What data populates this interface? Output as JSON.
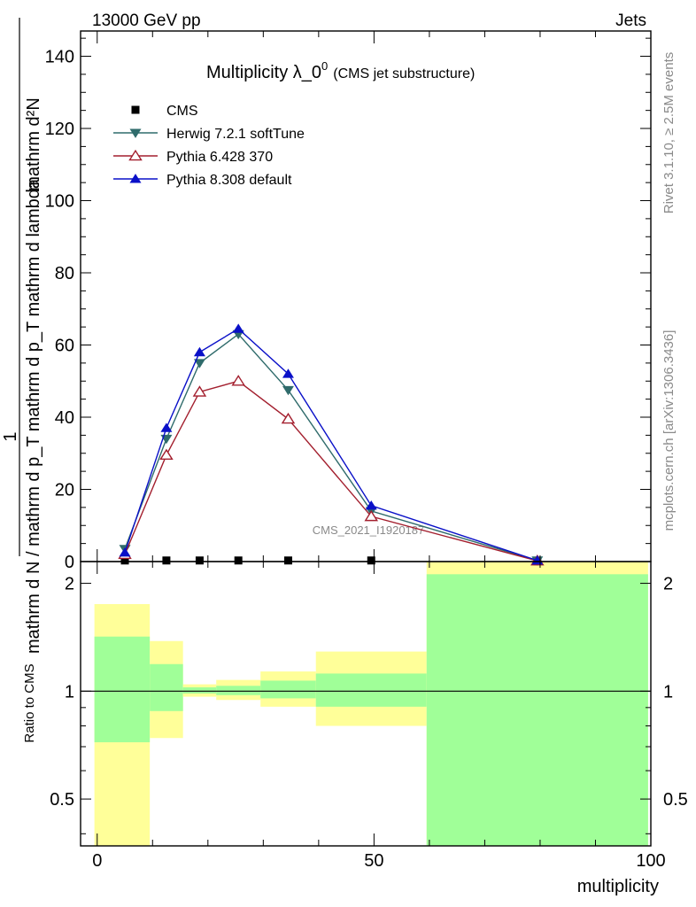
{
  "header": {
    "left": "13000 GeV pp",
    "right": "Jets"
  },
  "side_labels": {
    "rivet": "Rivet 3.1.10, ≥ 2.5M events",
    "mcplots": "mcplots.cern.ch [arXiv:1306.3436]"
  },
  "watermark": "CMS_2021_I1920187",
  "colors": {
    "cms": "#000000",
    "herwig": "#2f6b6b",
    "pythia6": "#a31f2e",
    "pythia8": "#0a10c8",
    "band_inner": "#a0ff98",
    "band_outer": "#ffff99"
  },
  "chart_data": [
    {
      "type": "line",
      "title_main": "Multiplicity λ_0",
      "title_sup": "0",
      "title_suffix": "(CMS jet substructure)",
      "ylabel_num": "1",
      "ylabel_den": "mathrm d N / mathrm d p_T mathrm d p_T mathrm d lambda",
      "ylabel_top": "mathrm d²N",
      "ylim": [
        0,
        147
      ],
      "yticks": [
        0,
        20,
        40,
        60,
        80,
        100,
        120,
        140
      ],
      "xlim": [
        -3,
        100
      ],
      "x": [
        5,
        12.5,
        18.5,
        25.5,
        34.5,
        49.5,
        79.5
      ],
      "series": [
        {
          "name": "CMS",
          "marker": "square",
          "values": [
            0.3,
            0.3,
            0.3,
            0.3,
            0.3,
            0.3,
            0.1
          ]
        },
        {
          "name": "Herwig 7.2.1 softTune",
          "marker": "triangle-down",
          "values": [
            3.5,
            34,
            55,
            63,
            47.5,
            14,
            0.3
          ]
        },
        {
          "name": "Pythia 6.428 370",
          "marker": "triangle-open",
          "values": [
            2,
            29.5,
            47,
            50,
            39.5,
            12.5,
            0.2
          ]
        },
        {
          "name": "Pythia 8.308 default",
          "marker": "triangle-up",
          "values": [
            2.5,
            37,
            58,
            64.5,
            52,
            15.5,
            0.3
          ]
        }
      ],
      "legend_position": "top-left"
    },
    {
      "type": "area",
      "ylabel": "Ratio to CMS",
      "xlabel": "multiplicity",
      "ylim": [
        0.37,
        2.3
      ],
      "yticks": [
        0.5,
        1,
        2
      ],
      "xticks": [
        0,
        50,
        100
      ],
      "xlim": [
        -3,
        100
      ],
      "reference_line": 1,
      "bins": [
        {
          "x0": -0.5,
          "x1": 9.5,
          "inner": [
            0.72,
            1.42
          ],
          "outer": [
            0.35,
            1.75
          ]
        },
        {
          "x0": 9.5,
          "x1": 15.5,
          "inner": [
            0.88,
            1.19
          ],
          "outer": [
            0.74,
            1.38
          ]
        },
        {
          "x0": 15.5,
          "x1": 21.5,
          "inner": [
            0.985,
            1.025
          ],
          "outer": [
            0.965,
            1.045
          ]
        },
        {
          "x0": 21.5,
          "x1": 29.5,
          "inner": [
            0.975,
            1.035
          ],
          "outer": [
            0.945,
            1.075
          ]
        },
        {
          "x0": 29.5,
          "x1": 39.5,
          "inner": [
            0.955,
            1.07
          ],
          "outer": [
            0.905,
            1.135
          ]
        },
        {
          "x0": 39.5,
          "x1": 59.5,
          "inner": [
            0.905,
            1.12
          ],
          "outer": [
            0.8,
            1.29
          ]
        },
        {
          "x0": 59.5,
          "x1": 99.5,
          "inner": [
            0.35,
            2.12
          ],
          "outer": [
            0.35,
            2.5
          ]
        }
      ]
    }
  ]
}
